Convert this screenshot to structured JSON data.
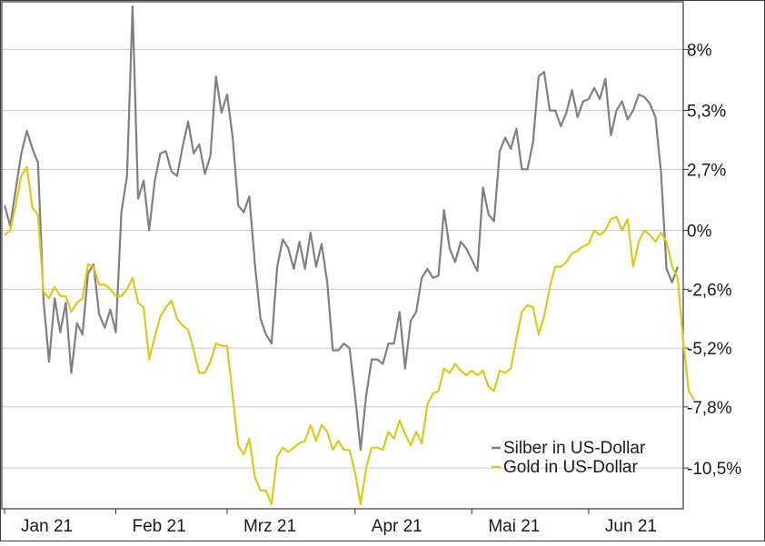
{
  "chart_data": {
    "type": "line",
    "x_unit": "trading day index, 2021-01-04 .. 2021-06-24",
    "x_tick_labels": [
      {
        "label": "Jan 21",
        "x": 0
      },
      {
        "label": "Feb 21",
        "x": 20
      },
      {
        "label": "Mrz 21",
        "x": 40
      },
      {
        "label": "Apr 21",
        "x": 63
      },
      {
        "label": "Mai 21",
        "x": 84
      },
      {
        "label": "Jun 21",
        "x": 105
      }
    ],
    "y_ticks": [
      {
        "value": 8,
        "label": "8%"
      },
      {
        "value": 5.3,
        "label": "5,3%"
      },
      {
        "value": 2.7,
        "label": "2,7%"
      },
      {
        "value": 0,
        "label": "0%"
      },
      {
        "value": -2.6,
        "label": "-2,6%"
      },
      {
        "value": -5.2,
        "label": "-5,2%"
      },
      {
        "value": -7.8,
        "label": "-7,8%"
      },
      {
        "value": -10.5,
        "label": "-10,5%"
      }
    ],
    "ylim": [
      -12.3,
      10.1
    ],
    "xlim": [
      -0.5,
      122
    ],
    "grid": true,
    "y_axis_position": "right",
    "legend_position": "bottom-right",
    "series": [
      {
        "name": "Silber in US-Dollar",
        "color": "#808080",
        "values": [
          1.1,
          0.2,
          1.8,
          3.4,
          4.4,
          3.6,
          3.0,
          -3.1,
          -5.8,
          -3.0,
          -4.5,
          -3.2,
          -6.3,
          -4.1,
          -4.6,
          -1.9,
          -1.5,
          -3.7,
          -4.3,
          -3.5,
          -4.5,
          0.8,
          2.4,
          9.9,
          1.4,
          2.2,
          0.0,
          2.2,
          3.4,
          3.5,
          2.6,
          2.4,
          3.7,
          4.8,
          3.4,
          3.8,
          2.5,
          3.3,
          6.8,
          5.2,
          6.0,
          4.1,
          1.1,
          0.8,
          1.5,
          -1.5,
          -3.9,
          -4.6,
          -5.0,
          -1.6,
          -0.4,
          -0.8,
          -1.7,
          -0.5,
          -1.7,
          -0.1,
          -1.6,
          -0.6,
          -2.3,
          -5.3,
          -5.3,
          -5.0,
          -5.2,
          -7.3,
          -9.7,
          -7.3,
          -5.7,
          -5.7,
          -5.9,
          -5.0,
          -5.0,
          -3.6,
          -6.1,
          -4.0,
          -3.6,
          -2.1,
          -1.7,
          -2.1,
          -2.0,
          0.9,
          -0.8,
          -1.4,
          -0.5,
          -0.8,
          -1.3,
          -1.8,
          1.9,
          0.7,
          0.4,
          3.5,
          4.1,
          3.6,
          4.5,
          2.7,
          2.7,
          3.9,
          6.8,
          7.0,
          5.3,
          5.3,
          4.6,
          5.2,
          6.2,
          5.0,
          5.7,
          5.8,
          6.3,
          5.8,
          6.7,
          4.2,
          5.3,
          5.7,
          4.9,
          5.3,
          6.0,
          5.9,
          5.6,
          5.0,
          2.6,
          -1.7,
          -2.3,
          -1.6
        ]
      },
      {
        "name": "Gold in US-Dollar",
        "color": "#ddc91d",
        "values": [
          -0.2,
          0.0,
          1.1,
          2.4,
          2.8,
          1.0,
          0.7,
          -2.7,
          -3.0,
          -2.5,
          -2.9,
          -2.9,
          -3.6,
          -3.2,
          -3.0,
          -1.5,
          -1.6,
          -2.4,
          -2.4,
          -2.6,
          -2.9,
          -2.9,
          -2.6,
          -2.1,
          -3.2,
          -3.4,
          -5.7,
          -4.7,
          -3.8,
          -3.4,
          -3.1,
          -3.9,
          -4.2,
          -4.4,
          -5.3,
          -6.3,
          -6.3,
          -5.8,
          -5.0,
          -5.1,
          -5.1,
          -7.3,
          -9.5,
          -9.9,
          -9.2,
          -10.9,
          -11.5,
          -11.5,
          -12.1,
          -10.0,
          -9.6,
          -9.8,
          -9.6,
          -9.4,
          -9.3,
          -8.6,
          -9.3,
          -8.6,
          -8.9,
          -9.7,
          -9.3,
          -9.7,
          -9.7,
          -10.7,
          -12.1,
          -10.5,
          -9.6,
          -9.6,
          -9.7,
          -8.9,
          -9.2,
          -8.4,
          -9.0,
          -9.5,
          -8.9,
          -9.4,
          -7.7,
          -7.2,
          -7.1,
          -6.1,
          -6.3,
          -5.9,
          -6.2,
          -6.4,
          -6.2,
          -6.4,
          -6.2,
          -6.9,
          -7.1,
          -6.2,
          -6.3,
          -6.1,
          -4.8,
          -3.6,
          -3.3,
          -3.4,
          -4.6,
          -3.8,
          -2.5,
          -1.6,
          -1.6,
          -1.4,
          -1.0,
          -0.9,
          -0.7,
          -0.6,
          0.0,
          -0.2,
          0.0,
          0.5,
          0.6,
          0.0,
          0.5,
          -1.6,
          -0.5,
          0.0,
          -0.2,
          -0.5,
          -0.1,
          -0.5,
          -1.6,
          -2.1,
          -4.9,
          -7.1,
          -7.5
        ]
      }
    ]
  }
}
